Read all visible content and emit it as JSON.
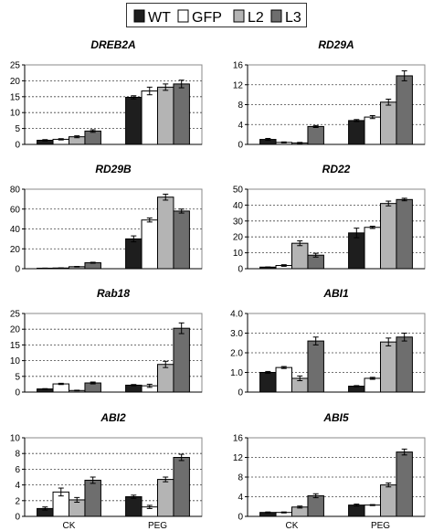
{
  "legend": {
    "items": [
      {
        "label": "WT",
        "color": "#1e1e1e"
      },
      {
        "label": "GFP",
        "color": "#ffffff"
      },
      {
        "label": "L2",
        "color": "#b4b4b4"
      },
      {
        "label": "L3",
        "color": "#6e6e6e"
      }
    ]
  },
  "chart_data": [
    {
      "type": "bar",
      "title": "DREB2A",
      "categories": [
        "CK",
        "PEG"
      ],
      "series": [
        {
          "name": "WT",
          "values": [
            1.3,
            14.8
          ],
          "errors": [
            0.2,
            0.5
          ]
        },
        {
          "name": "GFP",
          "values": [
            1.6,
            16.8
          ],
          "errors": [
            0.2,
            1.2
          ]
        },
        {
          "name": "L2",
          "values": [
            2.4,
            18.0
          ],
          "errors": [
            0.3,
            1.0
          ]
        },
        {
          "name": "L3",
          "values": [
            4.2,
            19.0
          ],
          "errors": [
            0.4,
            1.2
          ]
        }
      ],
      "ylim": [
        0,
        25
      ],
      "yticks": [
        "0",
        "5",
        "10",
        "15",
        "20",
        "25"
      ],
      "grid": "dashed"
    },
    {
      "type": "bar",
      "title": "RD29A",
      "categories": [
        "CK",
        "PEG"
      ],
      "series": [
        {
          "name": "WT",
          "values": [
            1.0,
            4.8
          ],
          "errors": [
            0.2,
            0.2
          ]
        },
        {
          "name": "GFP",
          "values": [
            0.4,
            5.5
          ],
          "errors": [
            0.1,
            0.3
          ]
        },
        {
          "name": "L2",
          "values": [
            0.3,
            8.5
          ],
          "errors": [
            0.1,
            0.6
          ]
        },
        {
          "name": "L3",
          "values": [
            3.6,
            13.8
          ],
          "errors": [
            0.2,
            1.0
          ]
        }
      ],
      "ylim": [
        0,
        16
      ],
      "yticks": [
        "0",
        "4",
        "8",
        "12",
        "16"
      ],
      "grid": "dashed"
    },
    {
      "type": "bar",
      "title": "RD29B",
      "categories": [
        "CK",
        "PEG"
      ],
      "series": [
        {
          "name": "WT",
          "values": [
            0.5,
            30
          ],
          "errors": [
            0.1,
            3
          ]
        },
        {
          "name": "GFP",
          "values": [
            0.7,
            49
          ],
          "errors": [
            0.1,
            2
          ]
        },
        {
          "name": "L2",
          "values": [
            2,
            72
          ],
          "errors": [
            0.3,
            3
          ]
        },
        {
          "name": "L3",
          "values": [
            6,
            58
          ],
          "errors": [
            0.5,
            2
          ]
        }
      ],
      "ylim": [
        0,
        80
      ],
      "yticks": [
        "0",
        "20",
        "40",
        "60",
        "80"
      ],
      "grid": "dashed"
    },
    {
      "type": "bar",
      "title": "RD22",
      "categories": [
        "CK",
        "PEG"
      ],
      "series": [
        {
          "name": "WT",
          "values": [
            1.0,
            22.5
          ],
          "errors": [
            0.1,
            3.0
          ]
        },
        {
          "name": "GFP",
          "values": [
            2.0,
            26.0
          ],
          "errors": [
            0.5,
            0.7
          ]
        },
        {
          "name": "L2",
          "values": [
            16.0,
            41.0
          ],
          "errors": [
            1.5,
            1.5
          ]
        },
        {
          "name": "L3",
          "values": [
            8.5,
            43.5
          ],
          "errors": [
            1.2,
            0.8
          ]
        }
      ],
      "ylim": [
        0,
        50
      ],
      "yticks": [
        "0",
        "10",
        "20",
        "30",
        "40",
        "50"
      ],
      "grid": "dashed"
    },
    {
      "type": "bar",
      "title": "Rab18",
      "categories": [
        "CK",
        "PEG"
      ],
      "series": [
        {
          "name": "WT",
          "values": [
            1.0,
            2.2
          ],
          "errors": [
            0.1,
            0.2
          ]
        },
        {
          "name": "GFP",
          "values": [
            2.6,
            2.0
          ],
          "errors": [
            0.2,
            0.5
          ]
        },
        {
          "name": "L2",
          "values": [
            0.5,
            8.8
          ],
          "errors": [
            0.1,
            1.0
          ]
        },
        {
          "name": "L3",
          "values": [
            2.9,
            20.3
          ],
          "errors": [
            0.3,
            1.7
          ]
        }
      ],
      "ylim": [
        0,
        25
      ],
      "yticks": [
        "0",
        "5",
        "10",
        "15",
        "20",
        "25"
      ],
      "grid": "dashed"
    },
    {
      "type": "bar",
      "title": "ABI1",
      "categories": [
        "CK",
        "PEG"
      ],
      "series": [
        {
          "name": "WT",
          "values": [
            1.0,
            0.3
          ],
          "errors": [
            0.05,
            0.03
          ]
        },
        {
          "name": "GFP",
          "values": [
            1.25,
            0.7
          ],
          "errors": [
            0.05,
            0.05
          ]
        },
        {
          "name": "L2",
          "values": [
            0.7,
            2.55
          ],
          "errors": [
            0.12,
            0.2
          ]
        },
        {
          "name": "L3",
          "values": [
            2.6,
            2.8
          ],
          "errors": [
            0.2,
            0.2
          ]
        }
      ],
      "ylim": [
        0,
        4
      ],
      "yticks": [
        "0",
        "1.0",
        "2.0",
        "3.0",
        "4.0"
      ],
      "grid": "dashed"
    },
    {
      "type": "bar",
      "title": "ABI2",
      "categories": [
        "CK",
        "PEG"
      ],
      "series": [
        {
          "name": "WT",
          "values": [
            1.0,
            2.5
          ],
          "errors": [
            0.2,
            0.2
          ]
        },
        {
          "name": "GFP",
          "values": [
            3.1,
            1.2
          ],
          "errors": [
            0.5,
            0.2
          ]
        },
        {
          "name": "L2",
          "values": [
            2.1,
            4.7
          ],
          "errors": [
            0.3,
            0.3
          ]
        },
        {
          "name": "L3",
          "values": [
            4.6,
            7.5
          ],
          "errors": [
            0.4,
            0.4
          ]
        }
      ],
      "ylim": [
        0,
        10
      ],
      "yticks": [
        "0",
        "2",
        "4",
        "6",
        "8",
        "10"
      ],
      "grid": "dashed"
    },
    {
      "type": "bar",
      "title": "ABI5",
      "categories": [
        "CK",
        "PEG"
      ],
      "series": [
        {
          "name": "WT",
          "values": [
            0.8,
            2.3
          ],
          "errors": [
            0.1,
            0.2
          ]
        },
        {
          "name": "GFP",
          "values": [
            0.8,
            2.3
          ],
          "errors": [
            0.1,
            0.1
          ]
        },
        {
          "name": "L2",
          "values": [
            1.9,
            6.4
          ],
          "errors": [
            0.2,
            0.4
          ]
        },
        {
          "name": "L3",
          "values": [
            4.2,
            13.1
          ],
          "errors": [
            0.4,
            0.6
          ]
        }
      ],
      "ylim": [
        0,
        16
      ],
      "yticks": [
        "0",
        "4",
        "8",
        "12",
        "16"
      ],
      "grid": "dashed"
    }
  ]
}
